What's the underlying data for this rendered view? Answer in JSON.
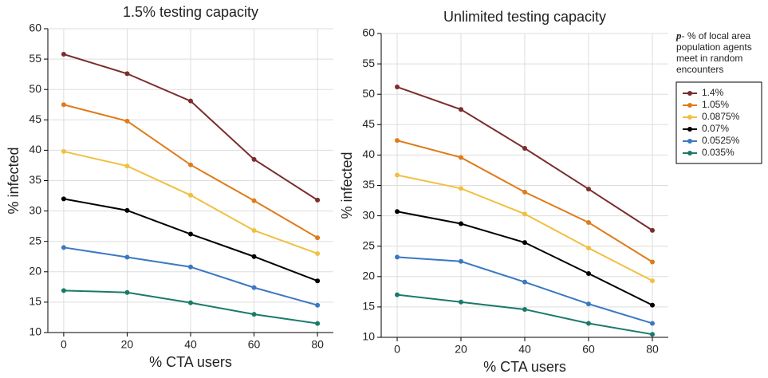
{
  "chart_data": [
    {
      "type": "line",
      "title": "1.5% testing capacity",
      "xlabel": "% CTA users",
      "ylabel": "% infected",
      "x": [
        0,
        20,
        40,
        60,
        80
      ],
      "xlim": [
        -5,
        85
      ],
      "xticks": [
        0,
        20,
        40,
        60,
        80
      ],
      "ylim": [
        10,
        60
      ],
      "yticks": [
        10,
        15,
        20,
        25,
        30,
        35,
        40,
        45,
        50,
        55,
        60
      ],
      "grid": true,
      "series": [
        {
          "name": "1.4%",
          "color": "#7b2d2d",
          "values": [
            55.8,
            52.6,
            48.1,
            38.5,
            31.8
          ]
        },
        {
          "name": "1.05%",
          "color": "#e07b1a",
          "values": [
            47.5,
            44.8,
            37.6,
            31.7,
            25.6
          ]
        },
        {
          "name": "0.0875%",
          "color": "#f0c040",
          "values": [
            39.8,
            37.4,
            32.6,
            26.8,
            23.0
          ]
        },
        {
          "name": "0.07%",
          "color": "#000000",
          "values": [
            32.0,
            30.1,
            26.2,
            22.5,
            18.5
          ]
        },
        {
          "name": "0.0525%",
          "color": "#3a78c3",
          "values": [
            24.0,
            22.4,
            20.8,
            17.4,
            14.5
          ]
        },
        {
          "name": "0.035%",
          "color": "#1a7a6a",
          "values": [
            16.9,
            16.6,
            14.9,
            13.0,
            11.5
          ]
        }
      ]
    },
    {
      "type": "line",
      "title": "Unlimited testing capacity",
      "xlabel": "% CTA users",
      "ylabel": "% infected",
      "x": [
        0,
        20,
        40,
        60,
        80
      ],
      "xlim": [
        -5,
        85
      ],
      "xticks": [
        0,
        20,
        40,
        60,
        80
      ],
      "ylim": [
        10,
        60
      ],
      "yticks": [
        10,
        15,
        20,
        25,
        30,
        35,
        40,
        45,
        50,
        55,
        60
      ],
      "grid": true,
      "legend_symbol": "p",
      "legend_title": "- % of local area population agents meet in random encounters",
      "series": [
        {
          "name": "1.4%",
          "color": "#7b2d2d",
          "values": [
            51.2,
            47.5,
            41.1,
            34.4,
            27.6
          ]
        },
        {
          "name": "1.05%",
          "color": "#e07b1a",
          "values": [
            42.4,
            39.6,
            33.9,
            28.9,
            22.4
          ]
        },
        {
          "name": "0.0875%",
          "color": "#f0c040",
          "values": [
            36.7,
            34.5,
            30.3,
            24.7,
            19.3
          ]
        },
        {
          "name": "0.07%",
          "color": "#000000",
          "values": [
            30.7,
            28.7,
            25.6,
            20.5,
            15.3
          ]
        },
        {
          "name": "0.0525%",
          "color": "#3a78c3",
          "values": [
            23.2,
            22.5,
            19.1,
            15.5,
            12.3
          ]
        },
        {
          "name": "0.035%",
          "color": "#1a7a6a",
          "values": [
            17.0,
            15.8,
            14.6,
            12.3,
            10.5
          ]
        }
      ]
    }
  ]
}
